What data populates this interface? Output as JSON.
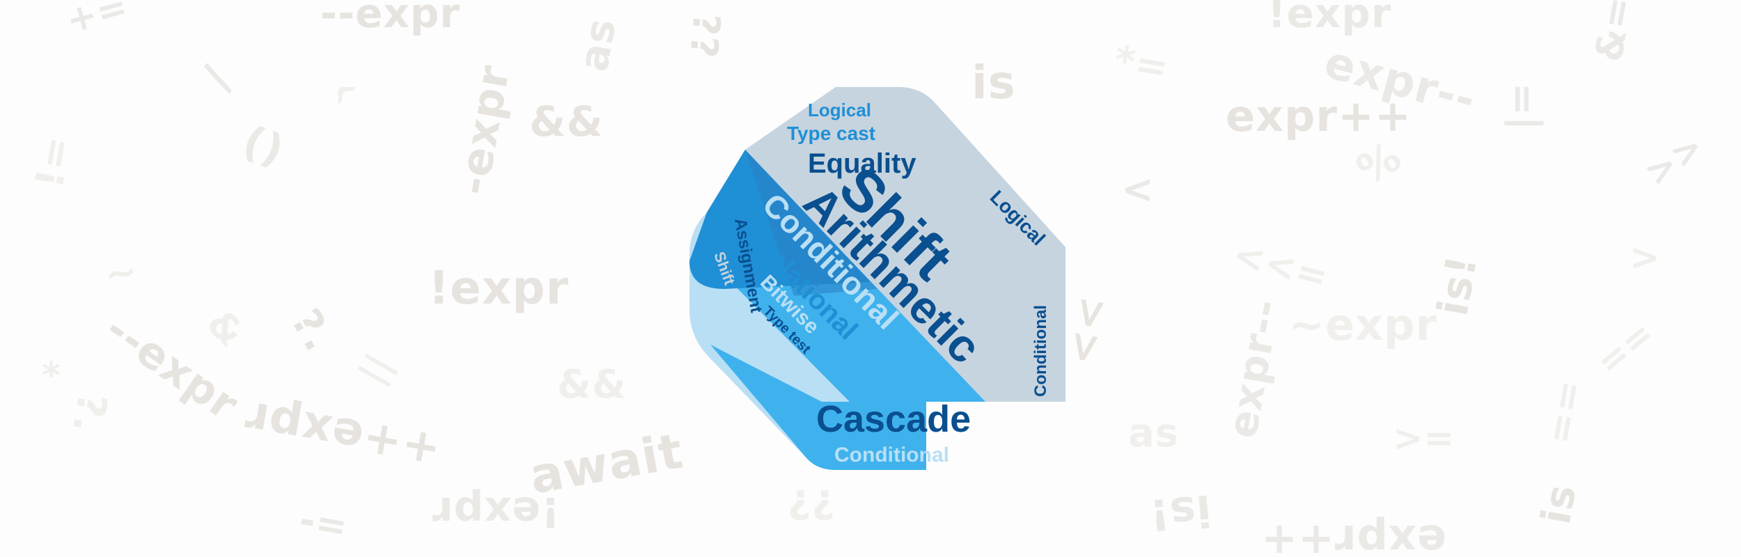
{
  "background_tokens": [
    "+=",
    "--expr",
    "!expr",
    "&&",
    "as",
    "??",
    "expr--",
    "&=",
    "is",
    "!=",
    "/",
    "*=",
    "expr++",
    "()",
    "^",
    "-expr",
    "!expr",
    "%",
    "|=",
    "~",
    ">>",
    "<<=",
    "is!",
    "await",
    "expr--",
    "~expr",
    "==",
    "<",
    ">=",
    "?.",
    "&",
    "*",
    "-=",
    "||",
    "is!",
    "--expr",
    "++expr",
    "?.",
    "!expr",
    "??",
    "expr++",
    "as",
    "<<",
    "==",
    ">",
    "()",
    "is",
    "&&"
  ],
  "word_cloud": {
    "top_group": [
      "Logical",
      "Type cast",
      "Equality"
    ],
    "main_words": [
      "Shift",
      "Arithmetic",
      "Conditional",
      "Relational",
      "Bitwise",
      "Type test",
      "Shift",
      "Assignment"
    ],
    "right_words": [
      "Logical",
      "Conditional"
    ],
    "bottom_group": [
      "Cascade",
      "Conditional"
    ]
  },
  "colors": {
    "navy": "#0a4f8f",
    "blue": "#1f8fd6",
    "sky": "#3fb2ee",
    "pale": "#b9dff4",
    "grey": "#c6d4df",
    "token": "#e9e6e2"
  },
  "icons": {
    "logo": "dart-logo-word-cloud"
  }
}
